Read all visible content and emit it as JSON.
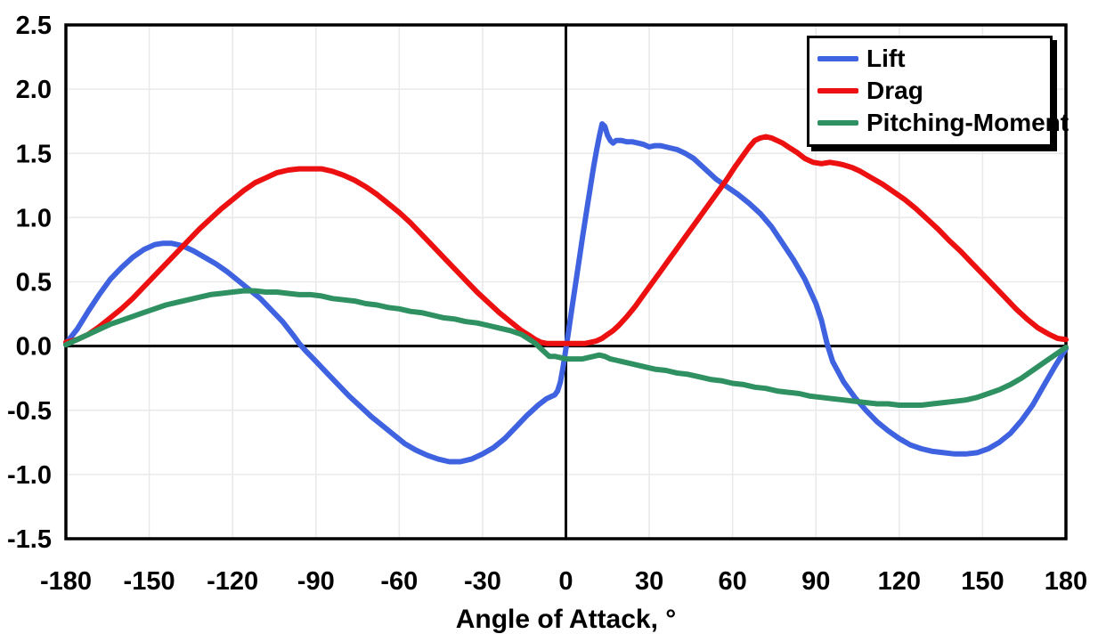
{
  "figure": {
    "background": "#ffffff",
    "axis_color": "#000000",
    "grid_color": "#e9e9e9"
  },
  "chart_data": {
    "type": "line",
    "title": "",
    "xlabel": "Angle of Attack, °",
    "ylabel": "",
    "xlim": [
      -180,
      180
    ],
    "ylim": [
      -1.5,
      2.5
    ],
    "xticks": [
      -180,
      -150,
      -120,
      -90,
      -60,
      -30,
      0,
      30,
      60,
      90,
      120,
      150,
      180
    ],
    "ytick_labels": [
      "-1.5",
      "-1.0",
      "-0.5",
      "0.0",
      "0.5",
      "1.0",
      "1.5",
      "2.0",
      "2.5"
    ],
    "grid": true,
    "zero_axis_lines": true,
    "legend_position": "top-right",
    "line_width": 6,
    "series": [
      {
        "name": "Lift",
        "color": "#3F63E0",
        "points": [
          [
            -180,
            0.02
          ],
          [
            -176,
            0.13
          ],
          [
            -172,
            0.27
          ],
          [
            -168,
            0.4
          ],
          [
            -164,
            0.52
          ],
          [
            -160,
            0.61
          ],
          [
            -156,
            0.69
          ],
          [
            -152,
            0.75
          ],
          [
            -148,
            0.79
          ],
          [
            -145,
            0.8
          ],
          [
            -142,
            0.8
          ],
          [
            -138,
            0.78
          ],
          [
            -134,
            0.74
          ],
          [
            -130,
            0.69
          ],
          [
            -126,
            0.64
          ],
          [
            -122,
            0.58
          ],
          [
            -118,
            0.51
          ],
          [
            -114,
            0.44
          ],
          [
            -110,
            0.37
          ],
          [
            -106,
            0.28
          ],
          [
            -102,
            0.19
          ],
          [
            -98,
            0.08
          ],
          [
            -96,
            0.02
          ],
          [
            -94,
            -0.03
          ],
          [
            -90,
            -0.12
          ],
          [
            -86,
            -0.21
          ],
          [
            -82,
            -0.3
          ],
          [
            -78,
            -0.39
          ],
          [
            -74,
            -0.47
          ],
          [
            -70,
            -0.55
          ],
          [
            -66,
            -0.62
          ],
          [
            -62,
            -0.69
          ],
          [
            -58,
            -0.76
          ],
          [
            -54,
            -0.81
          ],
          [
            -50,
            -0.85
          ],
          [
            -46,
            -0.88
          ],
          [
            -42,
            -0.9
          ],
          [
            -38,
            -0.9
          ],
          [
            -34,
            -0.88
          ],
          [
            -30,
            -0.84
          ],
          [
            -26,
            -0.79
          ],
          [
            -22,
            -0.72
          ],
          [
            -18,
            -0.63
          ],
          [
            -14,
            -0.54
          ],
          [
            -10,
            -0.46
          ],
          [
            -7,
            -0.41
          ],
          [
            -5,
            -0.39
          ],
          [
            -4,
            -0.38
          ],
          [
            -3,
            -0.35
          ],
          [
            -2,
            -0.28
          ],
          [
            -1,
            -0.16
          ],
          [
            0,
            -0.02
          ],
          [
            1,
            0.12
          ],
          [
            2,
            0.27
          ],
          [
            4,
            0.56
          ],
          [
            6,
            0.85
          ],
          [
            8,
            1.13
          ],
          [
            10,
            1.4
          ],
          [
            11,
            1.52
          ],
          [
            12,
            1.63
          ],
          [
            13,
            1.73
          ],
          [
            14,
            1.71
          ],
          [
            15,
            1.64
          ],
          [
            16,
            1.6
          ],
          [
            17,
            1.58
          ],
          [
            18,
            1.6
          ],
          [
            20,
            1.6
          ],
          [
            22,
            1.59
          ],
          [
            24,
            1.59
          ],
          [
            26,
            1.58
          ],
          [
            28,
            1.57
          ],
          [
            30,
            1.55
          ],
          [
            32,
            1.56
          ],
          [
            34,
            1.56
          ],
          [
            36,
            1.55
          ],
          [
            38,
            1.54
          ],
          [
            40,
            1.53
          ],
          [
            43,
            1.5
          ],
          [
            46,
            1.46
          ],
          [
            50,
            1.38
          ],
          [
            54,
            1.3
          ],
          [
            58,
            1.24
          ],
          [
            62,
            1.18
          ],
          [
            66,
            1.11
          ],
          [
            70,
            1.03
          ],
          [
            74,
            0.93
          ],
          [
            78,
            0.8
          ],
          [
            82,
            0.67
          ],
          [
            86,
            0.52
          ],
          [
            90,
            0.33
          ],
          [
            92,
            0.2
          ],
          [
            94,
            0.02
          ],
          [
            96,
            -0.12
          ],
          [
            100,
            -0.28
          ],
          [
            104,
            -0.4
          ],
          [
            108,
            -0.5
          ],
          [
            112,
            -0.59
          ],
          [
            116,
            -0.66
          ],
          [
            120,
            -0.72
          ],
          [
            124,
            -0.77
          ],
          [
            128,
            -0.8
          ],
          [
            132,
            -0.82
          ],
          [
            136,
            -0.83
          ],
          [
            140,
            -0.84
          ],
          [
            144,
            -0.84
          ],
          [
            148,
            -0.83
          ],
          [
            152,
            -0.8
          ],
          [
            156,
            -0.75
          ],
          [
            160,
            -0.68
          ],
          [
            164,
            -0.58
          ],
          [
            168,
            -0.46
          ],
          [
            172,
            -0.31
          ],
          [
            176,
            -0.16
          ],
          [
            180,
            -0.02
          ]
        ]
      },
      {
        "name": "Drag",
        "color": "#ED1010",
        "points": [
          [
            -180,
            0.03
          ],
          [
            -176,
            0.05
          ],
          [
            -172,
            0.09
          ],
          [
            -168,
            0.15
          ],
          [
            -164,
            0.22
          ],
          [
            -160,
            0.29
          ],
          [
            -156,
            0.37
          ],
          [
            -152,
            0.46
          ],
          [
            -148,
            0.55
          ],
          [
            -144,
            0.64
          ],
          [
            -140,
            0.73
          ],
          [
            -136,
            0.82
          ],
          [
            -132,
            0.91
          ],
          [
            -128,
            0.99
          ],
          [
            -124,
            1.07
          ],
          [
            -120,
            1.14
          ],
          [
            -116,
            1.21
          ],
          [
            -112,
            1.27
          ],
          [
            -108,
            1.31
          ],
          [
            -104,
            1.35
          ],
          [
            -100,
            1.37
          ],
          [
            -96,
            1.38
          ],
          [
            -92,
            1.38
          ],
          [
            -88,
            1.38
          ],
          [
            -84,
            1.36
          ],
          [
            -80,
            1.33
          ],
          [
            -76,
            1.29
          ],
          [
            -72,
            1.24
          ],
          [
            -68,
            1.18
          ],
          [
            -64,
            1.11
          ],
          [
            -60,
            1.04
          ],
          [
            -56,
            0.96
          ],
          [
            -52,
            0.87
          ],
          [
            -48,
            0.78
          ],
          [
            -44,
            0.69
          ],
          [
            -40,
            0.6
          ],
          [
            -36,
            0.51
          ],
          [
            -32,
            0.42
          ],
          [
            -28,
            0.34
          ],
          [
            -24,
            0.26
          ],
          [
            -20,
            0.19
          ],
          [
            -16,
            0.12
          ],
          [
            -13,
            0.08
          ],
          [
            -11,
            0.05
          ],
          [
            -9,
            0.03
          ],
          [
            -7,
            0.02
          ],
          [
            -4,
            0.02
          ],
          [
            0,
            0.02
          ],
          [
            4,
            0.02
          ],
          [
            7,
            0.02
          ],
          [
            9,
            0.03
          ],
          [
            11,
            0.04
          ],
          [
            13,
            0.06
          ],
          [
            15,
            0.09
          ],
          [
            17,
            0.12
          ],
          [
            19,
            0.16
          ],
          [
            22,
            0.23
          ],
          [
            25,
            0.31
          ],
          [
            28,
            0.4
          ],
          [
            31,
            0.49
          ],
          [
            34,
            0.58
          ],
          [
            37,
            0.67
          ],
          [
            40,
            0.76
          ],
          [
            43,
            0.85
          ],
          [
            46,
            0.94
          ],
          [
            49,
            1.03
          ],
          [
            52,
            1.12
          ],
          [
            55,
            1.21
          ],
          [
            58,
            1.3
          ],
          [
            61,
            1.4
          ],
          [
            64,
            1.49
          ],
          [
            66,
            1.55
          ],
          [
            68,
            1.6
          ],
          [
            70,
            1.62
          ],
          [
            72,
            1.63
          ],
          [
            74,
            1.62
          ],
          [
            76,
            1.6
          ],
          [
            78,
            1.58
          ],
          [
            80,
            1.55
          ],
          [
            83,
            1.51
          ],
          [
            86,
            1.46
          ],
          [
            89,
            1.43
          ],
          [
            92,
            1.42
          ],
          [
            95,
            1.43
          ],
          [
            98,
            1.42
          ],
          [
            100,
            1.41
          ],
          [
            103,
            1.39
          ],
          [
            106,
            1.36
          ],
          [
            110,
            1.31
          ],
          [
            114,
            1.26
          ],
          [
            118,
            1.2
          ],
          [
            122,
            1.14
          ],
          [
            126,
            1.07
          ],
          [
            130,
            0.99
          ],
          [
            134,
            0.91
          ],
          [
            138,
            0.82
          ],
          [
            142,
            0.74
          ],
          [
            146,
            0.65
          ],
          [
            150,
            0.56
          ],
          [
            154,
            0.47
          ],
          [
            158,
            0.38
          ],
          [
            162,
            0.29
          ],
          [
            166,
            0.21
          ],
          [
            170,
            0.14
          ],
          [
            174,
            0.09
          ],
          [
            177,
            0.06
          ],
          [
            180,
            0.05
          ]
        ]
      },
      {
        "name": "Pitching-Moment",
        "color": "#2F9161",
        "points": [
          [
            -180,
            0.01
          ],
          [
            -176,
            0.05
          ],
          [
            -172,
            0.09
          ],
          [
            -168,
            0.13
          ],
          [
            -164,
            0.17
          ],
          [
            -160,
            0.2
          ],
          [
            -156,
            0.23
          ],
          [
            -152,
            0.26
          ],
          [
            -148,
            0.29
          ],
          [
            -144,
            0.32
          ],
          [
            -140,
            0.34
          ],
          [
            -136,
            0.36
          ],
          [
            -132,
            0.38
          ],
          [
            -128,
            0.4
          ],
          [
            -124,
            0.41
          ],
          [
            -120,
            0.42
          ],
          [
            -116,
            0.43
          ],
          [
            -112,
            0.43
          ],
          [
            -108,
            0.42
          ],
          [
            -104,
            0.42
          ],
          [
            -100,
            0.41
          ],
          [
            -96,
            0.4
          ],
          [
            -92,
            0.4
          ],
          [
            -88,
            0.39
          ],
          [
            -84,
            0.37
          ],
          [
            -80,
            0.36
          ],
          [
            -76,
            0.35
          ],
          [
            -72,
            0.33
          ],
          [
            -68,
            0.32
          ],
          [
            -64,
            0.3
          ],
          [
            -60,
            0.29
          ],
          [
            -56,
            0.27
          ],
          [
            -52,
            0.26
          ],
          [
            -48,
            0.24
          ],
          [
            -44,
            0.22
          ],
          [
            -40,
            0.21
          ],
          [
            -36,
            0.19
          ],
          [
            -32,
            0.18
          ],
          [
            -28,
            0.16
          ],
          [
            -24,
            0.14
          ],
          [
            -20,
            0.12
          ],
          [
            -16,
            0.09
          ],
          [
            -13,
            0.05
          ],
          [
            -11,
            0.02
          ],
          [
            -9,
            -0.02
          ],
          [
            -7,
            -0.06
          ],
          [
            -6,
            -0.08
          ],
          [
            -4,
            -0.08
          ],
          [
            -2,
            -0.09
          ],
          [
            0,
            -0.1
          ],
          [
            2,
            -0.1
          ],
          [
            4,
            -0.1
          ],
          [
            6,
            -0.1
          ],
          [
            8,
            -0.09
          ],
          [
            10,
            -0.08
          ],
          [
            12,
            -0.07
          ],
          [
            14,
            -0.08
          ],
          [
            16,
            -0.1
          ],
          [
            18,
            -0.11
          ],
          [
            20,
            -0.12
          ],
          [
            24,
            -0.14
          ],
          [
            28,
            -0.16
          ],
          [
            32,
            -0.18
          ],
          [
            36,
            -0.19
          ],
          [
            40,
            -0.21
          ],
          [
            44,
            -0.22
          ],
          [
            48,
            -0.24
          ],
          [
            52,
            -0.26
          ],
          [
            56,
            -0.27
          ],
          [
            60,
            -0.29
          ],
          [
            64,
            -0.3
          ],
          [
            68,
            -0.32
          ],
          [
            72,
            -0.33
          ],
          [
            76,
            -0.35
          ],
          [
            80,
            -0.36
          ],
          [
            84,
            -0.37
          ],
          [
            88,
            -0.39
          ],
          [
            92,
            -0.4
          ],
          [
            96,
            -0.41
          ],
          [
            100,
            -0.42
          ],
          [
            104,
            -0.43
          ],
          [
            108,
            -0.44
          ],
          [
            112,
            -0.45
          ],
          [
            116,
            -0.45
          ],
          [
            120,
            -0.46
          ],
          [
            124,
            -0.46
          ],
          [
            128,
            -0.46
          ],
          [
            132,
            -0.45
          ],
          [
            136,
            -0.44
          ],
          [
            140,
            -0.43
          ],
          [
            144,
            -0.42
          ],
          [
            148,
            -0.4
          ],
          [
            152,
            -0.37
          ],
          [
            156,
            -0.34
          ],
          [
            160,
            -0.3
          ],
          [
            164,
            -0.25
          ],
          [
            168,
            -0.19
          ],
          [
            172,
            -0.13
          ],
          [
            176,
            -0.07
          ],
          [
            180,
            -0.01
          ]
        ]
      }
    ]
  }
}
